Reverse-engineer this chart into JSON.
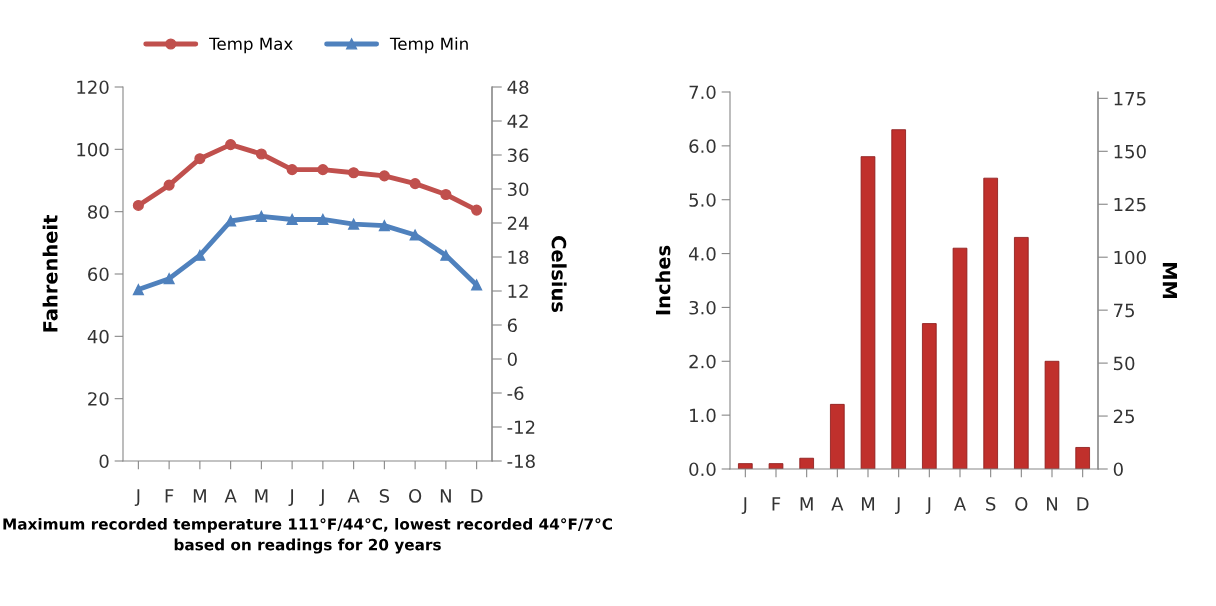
{
  "chart_data": [
    {
      "type": "line",
      "categories": [
        "J",
        "F",
        "M",
        "A",
        "M",
        "J",
        "J",
        "A",
        "S",
        "O",
        "N",
        "D"
      ],
      "ylabel": "Fahrenheit",
      "y2label": "Celsius",
      "ylim": [
        0,
        120
      ],
      "yticks": [
        0,
        20,
        40,
        60,
        80,
        100,
        120
      ],
      "y2lim": [
        -18,
        48
      ],
      "y2ticks": [
        -18,
        -12,
        -6,
        0,
        6,
        12,
        18,
        24,
        30,
        36,
        42,
        48
      ],
      "legend": "top",
      "grid": false,
      "line_style": "solid",
      "annotations": [
        "Maximum recorded temperature 111°F/44°C, lowest recorded 44°F/7°C based on readings for 20 years"
      ],
      "series": [
        {
          "name": "Temp Max",
          "color": "#c0504d",
          "marker": "circle",
          "values": [
            82,
            88.5,
            97,
            101.5,
            98.5,
            93.5,
            93.5,
            92.5,
            91.5,
            89,
            85.5,
            80.5
          ]
        },
        {
          "name": "Temp Min",
          "color": "#4f81bd",
          "marker": "triangle",
          "values": [
            55,
            58.5,
            66,
            77,
            78.5,
            77.5,
            77.5,
            76,
            75.5,
            72.5,
            66,
            56.5
          ]
        }
      ]
    },
    {
      "type": "bar",
      "categories": [
        "J",
        "F",
        "M",
        "A",
        "M",
        "J",
        "J",
        "A",
        "S",
        "O",
        "N",
        "D"
      ],
      "ylabel": "Inches",
      "y2label": "MM",
      "ylim": [
        0,
        7
      ],
      "yticks": [
        {
          "value": 0,
          "label": "0.0"
        },
        {
          "value": 1,
          "label": "1.0"
        },
        {
          "value": 2,
          "label": "2.0"
        },
        {
          "value": 3,
          "label": "3.0"
        },
        {
          "value": 4,
          "label": "4.0"
        },
        {
          "value": 5,
          "label": "5.0"
        },
        {
          "value": 6,
          "label": "6.0"
        },
        {
          "value": 7,
          "label": "7.0"
        }
      ],
      "y2lim": [
        0,
        178
      ],
      "y2ticks": [
        0,
        25,
        50,
        75,
        100,
        125,
        150,
        175
      ],
      "grid": false,
      "series": [
        {
          "color": "#c0302c",
          "values": [
            0.1,
            0.1,
            0.2,
            1.2,
            5.8,
            6.3,
            2.7,
            4.1,
            5.4,
            4.3,
            2.0,
            0.4
          ]
        }
      ]
    }
  ]
}
